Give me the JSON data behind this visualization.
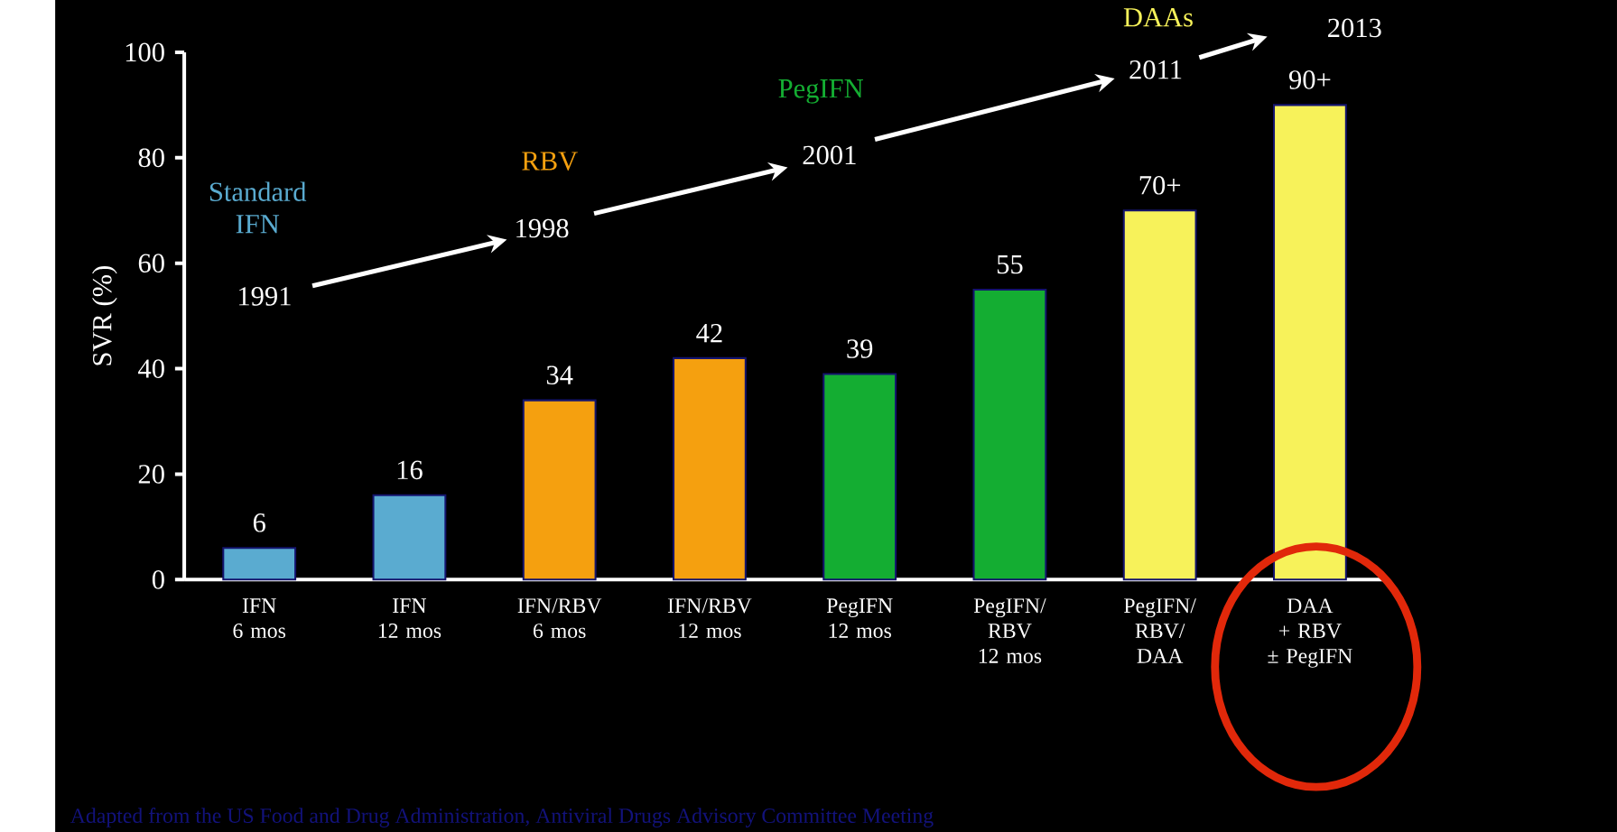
{
  "chart_data": {
    "type": "bar",
    "ylabel": "SVR (%)",
    "categories": [
      "IFN\n6 mos",
      "IFN\n12 mos",
      "IFN/RBV\n6 mos",
      "IFN/RBV\n12 mos",
      "PegIFN\n12 mos",
      "PegIFN/\nRBV\n12 mos",
      "PegIFN/\nRBV/\nDAA",
      "DAA\n+ RBV\n± PegIFN"
    ],
    "values": [
      6,
      16,
      34,
      42,
      39,
      55,
      70,
      90
    ],
    "value_labels": [
      "6",
      "16",
      "34",
      "42",
      "39",
      "55",
      "70+",
      "90+"
    ],
    "colors": [
      "#5aabd0",
      "#5aabd0",
      "#f5a00f",
      "#f5a00f",
      "#14ad32",
      "#14ad32",
      "#f7f25a",
      "#f7f25a"
    ],
    "ylim": [
      0,
      100
    ],
    "yticks": [
      0,
      20,
      40,
      60,
      80,
      100
    ],
    "grid": false,
    "annotations": [
      "Standard\nIFN",
      "RBV",
      "PegIFN",
      "DAAs",
      "1991",
      "1998",
      "2001",
      "2011",
      "2013",
      "Adapted from the US Food and Drug Administration, Antiviral Drugs Advisory Committee Meeting"
    ]
  }
}
